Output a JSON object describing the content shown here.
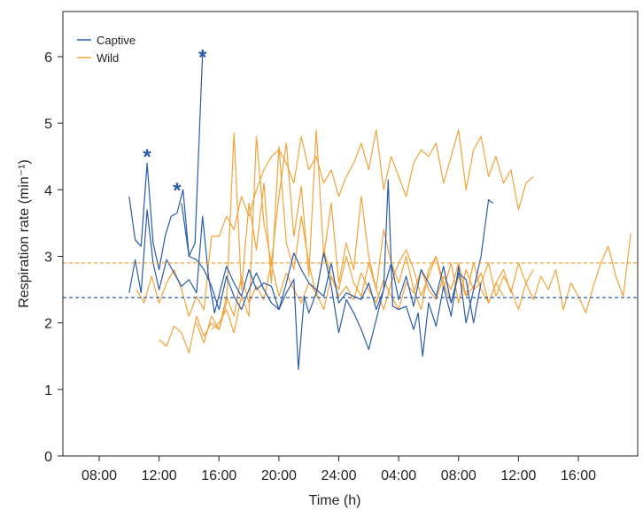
{
  "chart_data": {
    "type": "line",
    "title": "",
    "xlabel": "Time (h)",
    "ylabel": "Respiration rate (min⁻¹)",
    "x_tick_labels": [
      "08:00",
      "12:00",
      "16:00",
      "20:00",
      "24:00",
      "04:00",
      "08:00",
      "12:00",
      "16:00"
    ],
    "x_tick_hours": [
      8,
      12,
      16,
      20,
      24,
      28,
      32,
      36,
      40
    ],
    "xlim_hours": [
      8,
      44
    ],
    "ylim": [
      0,
      6.5
    ],
    "y_ticks": [
      0,
      1,
      2,
      3,
      4,
      5,
      6
    ],
    "grid": false,
    "legend_placement": "top-left",
    "legend": [
      {
        "label": "Captive",
        "color": "#2a5ba8"
      },
      {
        "label": "Wild",
        "color": "#f2a238"
      }
    ],
    "reference_lines": [
      {
        "series": "Wild",
        "y": 2.9,
        "style": "dashed",
        "color": "#f2a238"
      },
      {
        "series": "Captive",
        "y": 2.38,
        "style": "dashed",
        "color": "#2a5ba8"
      }
    ],
    "annotations": [
      {
        "text": "*",
        "x_hour": 11.2,
        "y": 4.6,
        "color": "#2a5ba8"
      },
      {
        "text": "*",
        "x_hour": 13.2,
        "y": 4.1,
        "color": "#2a5ba8"
      },
      {
        "text": "*",
        "x_hour": 14.9,
        "y": 6.1,
        "color": "#2a5ba8"
      }
    ],
    "series": [
      {
        "group": "Captive",
        "color": "#2a5ba8",
        "x_hours": [
          10.0,
          10.4,
          10.8,
          11.2,
          11.6,
          12.0,
          12.4,
          12.8,
          13.2,
          13.6,
          14.0,
          14.4,
          14.9
        ],
        "y": [
          3.9,
          3.25,
          3.15,
          4.4,
          3.2,
          2.8,
          3.3,
          3.6,
          3.65,
          4.0,
          3.0,
          3.2,
          6.05
        ]
      },
      {
        "group": "Captive",
        "color": "#2a5ba8",
        "x_hours": [
          10.0,
          10.4,
          10.8,
          11.2,
          11.6,
          12.0,
          12.5,
          13.0,
          13.5,
          14.0,
          14.5,
          14.9,
          15.3,
          15.7,
          16.1,
          16.5,
          17.0,
          17.5,
          18.0,
          18.5,
          19.0,
          19.5,
          20.0,
          20.5,
          21.0,
          21.5,
          22.0,
          22.5,
          23.0,
          23.5,
          24.0,
          24.5,
          25.0,
          25.5,
          26.0,
          26.5,
          27.0,
          27.5,
          28.0,
          28.5,
          29.0,
          29.5,
          30.0,
          30.5,
          31.0,
          31.5,
          32.0,
          32.5,
          33.0,
          33.5
        ],
        "y": [
          2.45,
          2.95,
          2.45,
          3.7,
          2.9,
          2.5,
          2.95,
          2.75,
          2.55,
          2.65,
          2.45,
          3.6,
          2.7,
          2.15,
          2.5,
          2.85,
          2.6,
          2.4,
          2.8,
          2.5,
          2.6,
          2.55,
          2.2,
          2.6,
          3.05,
          2.8,
          2.6,
          2.5,
          2.4,
          2.9,
          2.3,
          2.45,
          2.4,
          2.35,
          2.6,
          2.2,
          2.5,
          2.9,
          2.35,
          2.7,
          2.25,
          2.8,
          2.6,
          2.4,
          2.85,
          2.3,
          2.75,
          2.65,
          2.0,
          2.6
        ]
      },
      {
        "group": "Captive",
        "color": "#2a5ba8",
        "x_hours": [
          13.5,
          14.0,
          14.5,
          15.0,
          15.5,
          16.0,
          16.5,
          17.0,
          17.5,
          18.0,
          18.5,
          19.0,
          19.5,
          20.0,
          20.5,
          21.0,
          21.3,
          21.7,
          22.0,
          22.5,
          23.0,
          23.5,
          24.0,
          24.5,
          25.0,
          25.5,
          26.0,
          26.5,
          27.0,
          27.3,
          27.6,
          28.0,
          28.5,
          29.0,
          29.3,
          29.6,
          30.0,
          30.5,
          31.0,
          31.5,
          32.0,
          32.5,
          33.0,
          33.5,
          34.0,
          34.3
        ],
        "y": [
          3.8,
          3.0,
          2.95,
          2.8,
          2.55,
          2.2,
          2.7,
          2.4,
          2.2,
          2.5,
          2.75,
          2.5,
          2.3,
          2.2,
          2.45,
          2.65,
          1.3,
          2.4,
          2.15,
          2.45,
          3.05,
          2.55,
          1.85,
          2.35,
          2.15,
          1.9,
          1.6,
          2.05,
          2.5,
          4.15,
          2.25,
          2.2,
          2.25,
          1.9,
          2.15,
          1.5,
          2.3,
          1.95,
          2.55,
          2.1,
          2.85,
          2.0,
          2.5,
          3.0,
          3.85,
          3.8
        ]
      },
      {
        "group": "Wild",
        "color": "#f2a238",
        "x_hours": [
          10.5,
          11.0,
          11.5,
          12.0,
          12.5,
          13.0,
          13.5,
          14.0,
          14.5,
          15.0,
          15.5,
          16.0,
          16.5,
          17.0,
          17.5,
          18.0,
          18.5,
          19.0,
          19.5,
          20.0,
          20.5,
          21.0,
          21.5,
          22.0,
          22.5,
          23.0,
          23.5,
          24.0,
          24.5,
          25.0,
          25.5,
          26.0,
          26.5,
          27.0,
          27.5,
          28.0,
          28.5,
          29.0,
          29.5,
          30.0,
          30.5,
          31.0,
          31.5,
          32.0,
          32.5,
          33.0,
          33.5,
          34.0,
          34.5,
          35.0,
          35.5,
          36.0,
          36.5,
          37.0
        ],
        "y": [
          2.5,
          2.3,
          2.7,
          2.3,
          2.6,
          2.8,
          2.5,
          2.1,
          2.4,
          2.2,
          3.3,
          3.3,
          3.6,
          3.4,
          3.9,
          3.6,
          4.0,
          4.3,
          4.5,
          4.6,
          4.4,
          4.1,
          4.8,
          4.3,
          4.5,
          4.1,
          4.3,
          3.9,
          4.2,
          4.4,
          4.7,
          4.3,
          4.9,
          4.0,
          4.5,
          4.2,
          3.9,
          4.4,
          4.6,
          4.5,
          4.7,
          4.1,
          4.5,
          4.9,
          4.0,
          4.6,
          4.8,
          4.2,
          4.5,
          4.1,
          4.3,
          3.7,
          4.1,
          4.2
        ]
      },
      {
        "group": "Wild",
        "color": "#f2a238",
        "x_hours": [
          12.0,
          12.5,
          13.0,
          13.5,
          14.0,
          14.5,
          15.0,
          15.5,
          16.0,
          16.5,
          17.0,
          17.5,
          18.0,
          18.5,
          19.0,
          19.5,
          20.0,
          20.5,
          21.0,
          21.5,
          22.0,
          22.5,
          23.0,
          23.5,
          24.0,
          24.5,
          25.0,
          25.5,
          26.0,
          26.5,
          27.0,
          27.5,
          28.0,
          28.5,
          29.0,
          29.5,
          30.0,
          30.5,
          31.0,
          31.5,
          32.0,
          32.5,
          33.0,
          33.5,
          34.0,
          34.5,
          35.0,
          35.5,
          36.0,
          36.5,
          37.0,
          37.5,
          38.0,
          38.5,
          39.0,
          39.5,
          40.0,
          40.5,
          41.0,
          41.5,
          42.0,
          42.5,
          43.0,
          43.5
        ],
        "y": [
          1.75,
          1.65,
          1.95,
          1.85,
          1.55,
          2.1,
          1.8,
          2.0,
          1.9,
          2.4,
          2.1,
          2.7,
          2.3,
          2.55,
          2.35,
          2.9,
          2.4,
          2.75,
          2.5,
          2.3,
          2.6,
          2.45,
          2.2,
          2.7,
          2.4,
          2.55,
          2.35,
          2.75,
          2.5,
          2.3,
          2.65,
          2.4,
          2.2,
          2.6,
          2.45,
          2.8,
          2.5,
          2.35,
          2.7,
          2.5,
          2.9,
          2.4,
          2.55,
          2.75,
          2.3,
          2.6,
          2.8,
          2.45,
          2.9,
          2.6,
          2.35,
          2.7,
          2.5,
          2.8,
          2.2,
          2.6,
          2.4,
          2.15,
          2.55,
          2.9,
          3.15,
          2.7,
          2.4,
          3.35
        ]
      },
      {
        "group": "Wild",
        "color": "#f2a238",
        "x_hours": [
          14.5,
          15.0,
          15.5,
          16.0,
          16.5,
          17.0,
          17.5,
          18.0,
          18.5,
          19.0,
          19.5,
          20.0,
          20.5,
          21.0,
          21.5,
          22.0,
          22.5,
          23.0,
          23.5,
          24.0,
          24.5,
          25.0,
          25.5,
          26.0,
          26.5,
          27.0,
          27.5,
          28.0,
          28.5,
          29.0,
          29.5,
          30.0,
          30.5,
          31.0,
          31.5,
          32.0,
          32.5,
          33.0,
          33.5,
          34.0,
          34.5,
          35.0,
          35.5,
          36.0,
          36.5,
          37.0
        ],
        "y": [
          2.0,
          1.7,
          2.1,
          1.9,
          2.3,
          4.85,
          2.5,
          3.8,
          3.1,
          4.1,
          2.6,
          4.65,
          3.2,
          2.8,
          3.6,
          2.9,
          2.4,
          3.1,
          2.7,
          2.5,
          3.0,
          2.6,
          2.4,
          2.9,
          2.5,
          2.2,
          2.6,
          2.9,
          3.1,
          2.8,
          2.4,
          2.7,
          3.0,
          2.5,
          2.9,
          2.3,
          2.8,
          2.5,
          2.6,
          2.9,
          2.4,
          2.7,
          2.5,
          2.2,
          2.6,
          2.8
        ]
      },
      {
        "group": "Wild",
        "color": "#f2a238",
        "x_hours": [
          15.5,
          16.0,
          16.5,
          17.0,
          17.5,
          18.0,
          18.5,
          19.0,
          19.5,
          20.0,
          20.5,
          21.0,
          21.5,
          22.0,
          22.5,
          23.0,
          23.5,
          24.0,
          24.5,
          25.0,
          25.5,
          26.0,
          26.5,
          27.0,
          27.5,
          28.0,
          28.5,
          29.0,
          29.5,
          30.0,
          30.5,
          31.0,
          31.5,
          32.0,
          32.5,
          33.0,
          33.5,
          34.0,
          34.5,
          35.0
        ],
        "y": [
          1.9,
          2.0,
          2.2,
          1.85,
          2.4,
          2.1,
          4.8,
          3.5,
          2.9,
          3.9,
          4.7,
          3.3,
          4.05,
          2.7,
          4.9,
          3.0,
          3.8,
          2.6,
          3.2,
          2.8,
          3.9,
          3.0,
          2.5,
          3.4,
          2.9,
          2.6,
          3.0,
          2.5,
          2.2,
          2.8,
          3.0,
          2.6,
          2.3,
          2.7,
          2.4,
          2.9,
          2.5,
          2.3,
          2.6,
          2.4
        ]
      }
    ]
  }
}
